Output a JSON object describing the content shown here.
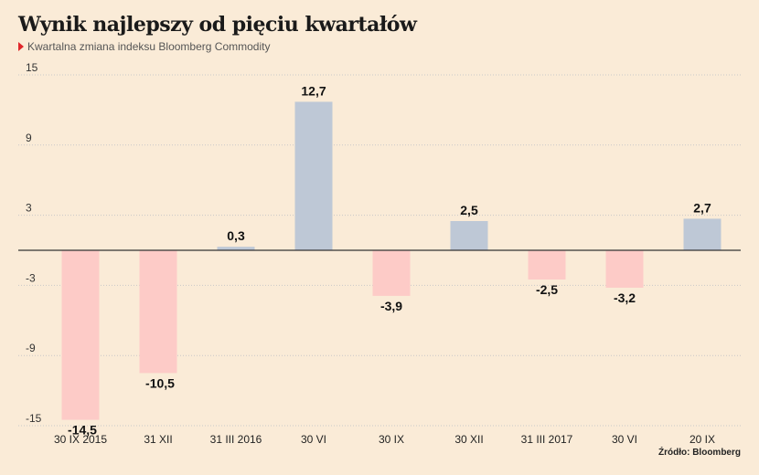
{
  "title": "Wynik najlepszy od pięciu kwartałów",
  "subtitle": "Kwartalna zmiana indeksu Bloomberg Commodity",
  "source": "Źródło: Bloomberg",
  "colors": {
    "positive": "#bec8d6",
    "negative": "#fdcbc7",
    "background": "#faebd7",
    "accent": "#e0262b"
  },
  "chart_data": {
    "type": "bar",
    "categories": [
      "30 IX 2015",
      "31 XII",
      "31 III 2016",
      "30 VI",
      "30 IX",
      "30 XII",
      "31 III 2017",
      "30 VI",
      "20 IX"
    ],
    "values": [
      -14.5,
      -10.5,
      0.3,
      12.7,
      -3.9,
      2.5,
      -2.5,
      -3.2,
      2.7
    ],
    "value_labels": [
      "-14,5",
      "-10,5",
      "0,3",
      "12,7",
      "-3,9",
      "2,5",
      "-2,5",
      "-3,2",
      "2,7"
    ],
    "yticks": [
      15,
      9,
      3,
      -3,
      -9,
      -15
    ],
    "ylim": [
      -15,
      15
    ],
    "grid": true
  }
}
